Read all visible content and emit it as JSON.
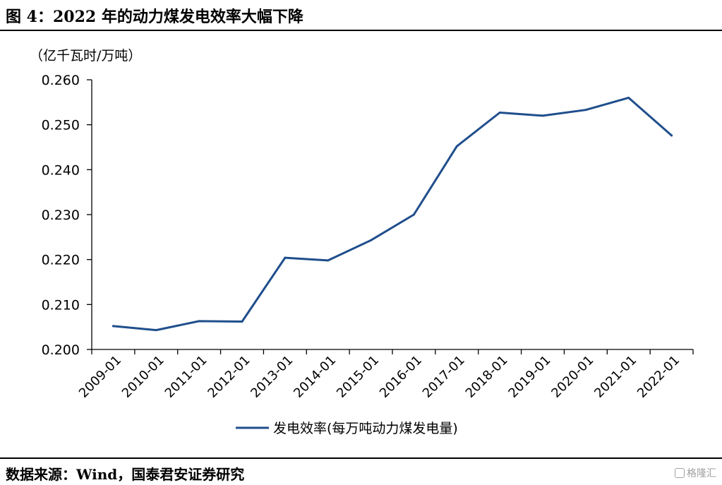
{
  "figure": {
    "title": "图 4：2022 年的动力煤发电效率大幅下降",
    "unit": "（亿千瓦时/万吨）",
    "source": "数据来源：Wind，国泰君安证券研究",
    "watermark": "格隆汇"
  },
  "chart_data": {
    "type": "line",
    "title": "",
    "xlabel": "",
    "ylabel": "（亿千瓦时/万吨）",
    "categories": [
      "2009-01",
      "2010-01",
      "2011-01",
      "2012-01",
      "2013-01",
      "2014-01",
      "2015-01",
      "2016-01",
      "2017-01",
      "2018-01",
      "2019-01",
      "2020-01",
      "2021-01",
      "2022-01"
    ],
    "series": [
      {
        "name": "发电效率(每万吨动力煤发电量)",
        "color": "#1f4e8c",
        "values": [
          0.2052,
          0.2043,
          0.2063,
          0.2062,
          0.2204,
          0.2198,
          0.2243,
          0.23,
          0.2452,
          0.2527,
          0.252,
          0.2533,
          0.256,
          0.2476
        ]
      }
    ],
    "yticks": [
      "0.200",
      "0.210",
      "0.220",
      "0.230",
      "0.240",
      "0.250",
      "0.260"
    ],
    "ylim": [
      0.2,
      0.26
    ],
    "grid": false,
    "legend": "bottom"
  }
}
